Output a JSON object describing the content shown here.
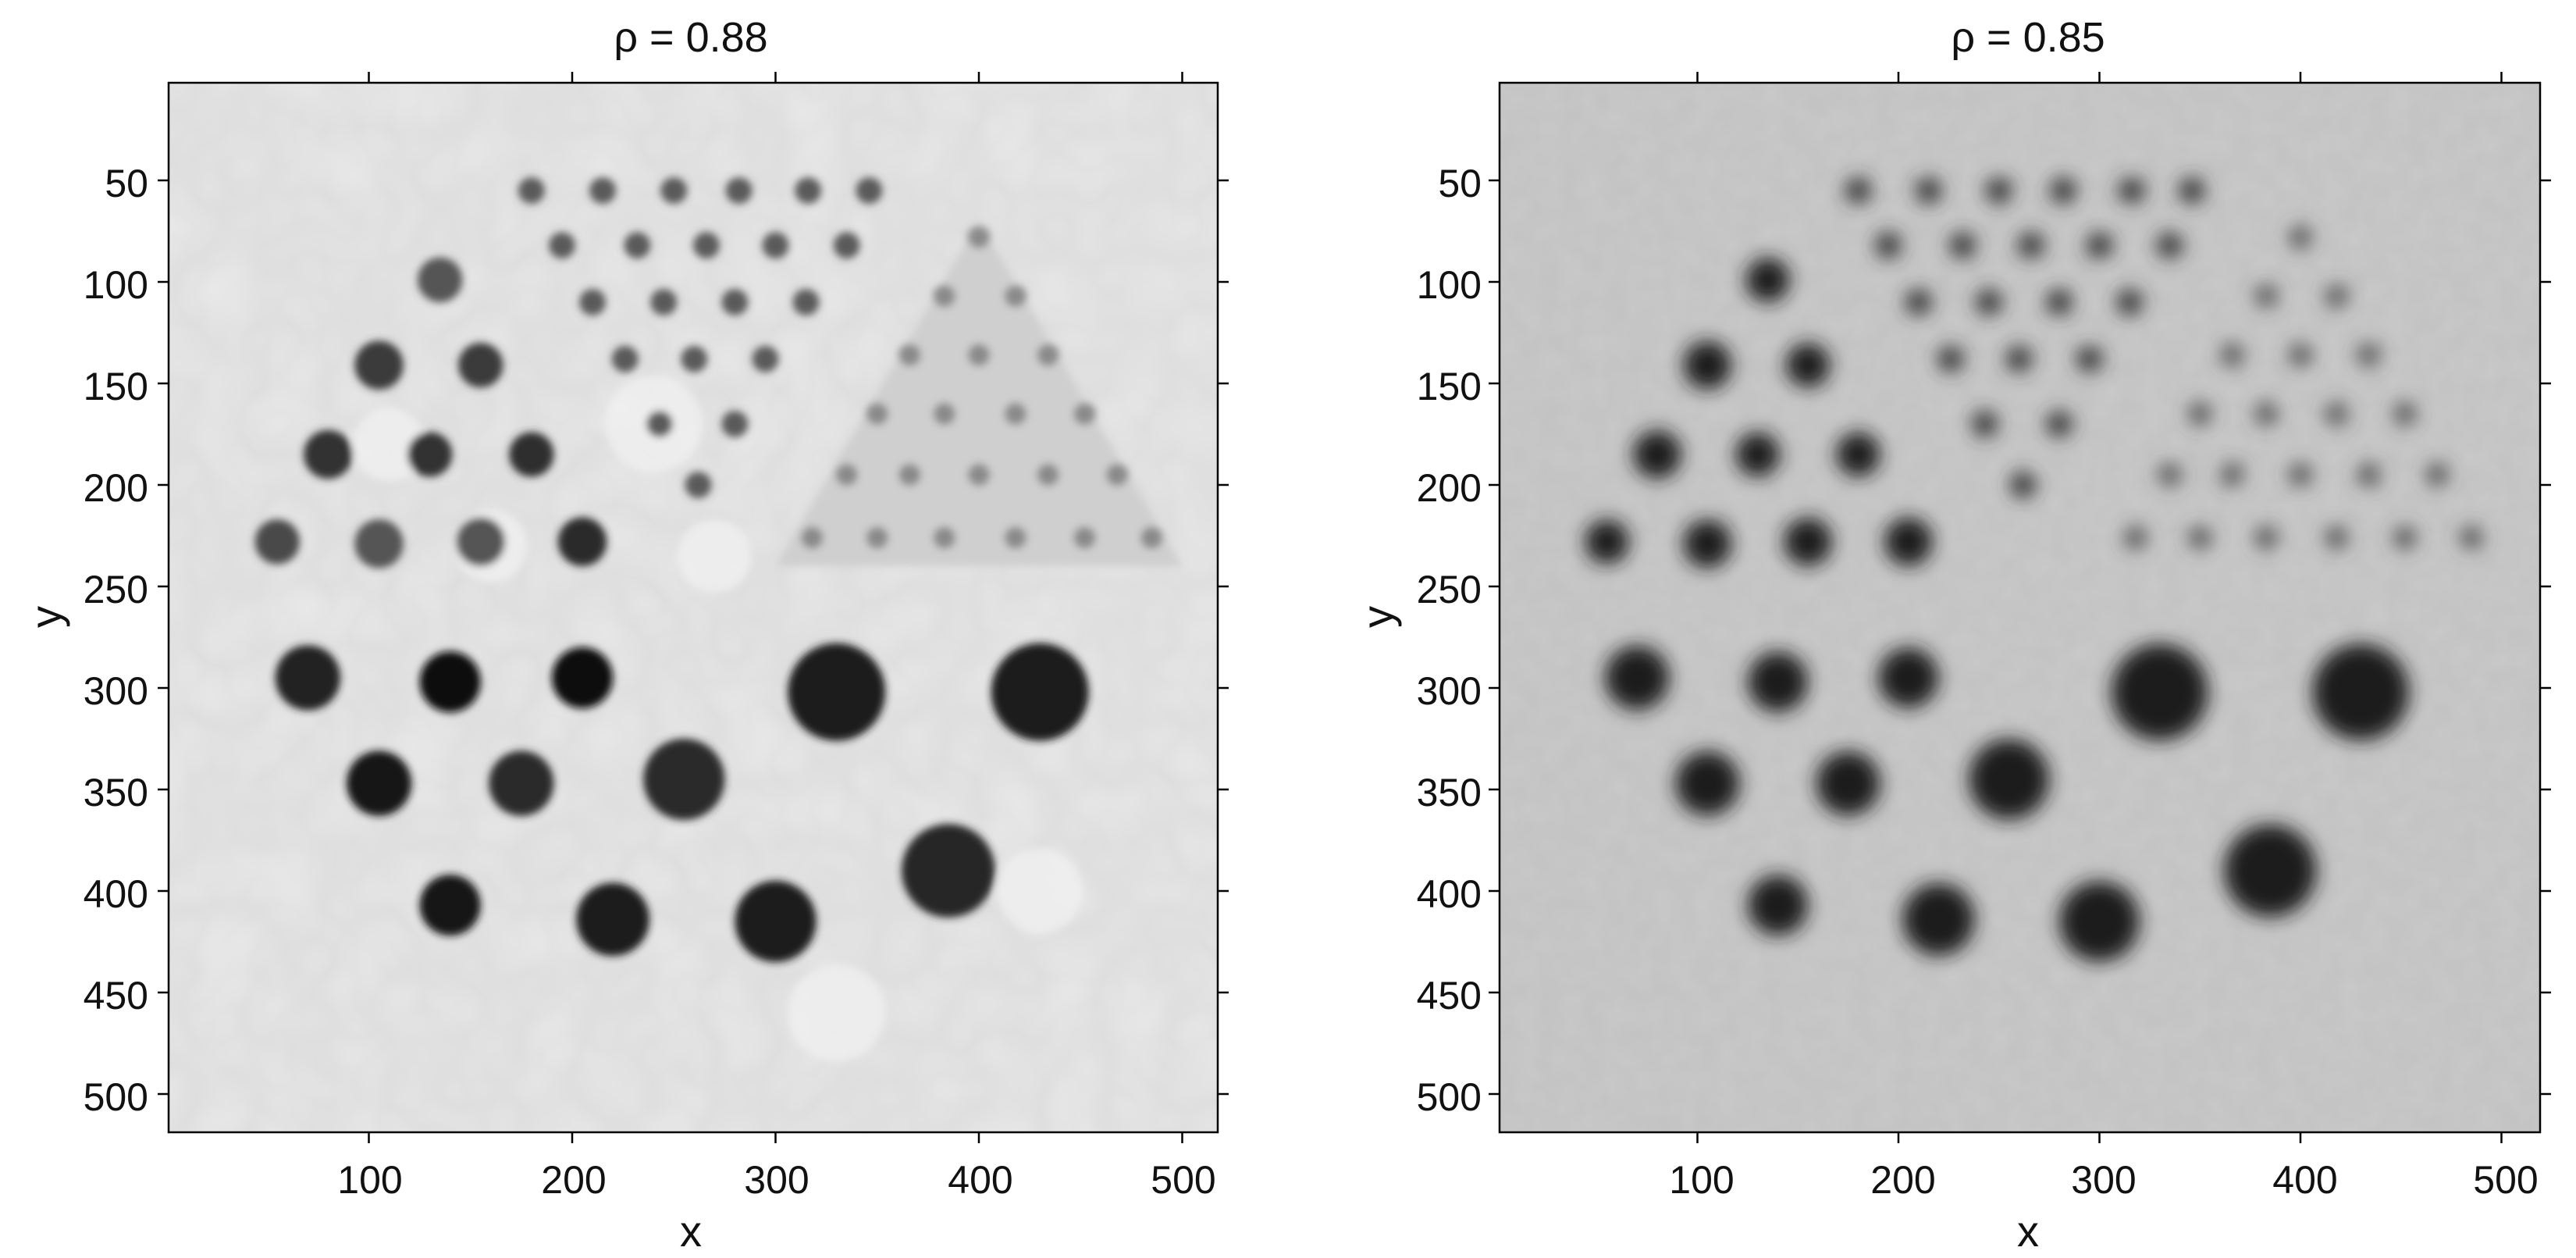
{
  "figure": {
    "panels": [
      {
        "id": "left",
        "title": "ρ = 0.88",
        "xlabel": "x",
        "ylabel": "y",
        "xticks": [
          "100",
          "200",
          "300",
          "400",
          "500"
        ],
        "yticks": [
          "50",
          "100",
          "150",
          "200",
          "250",
          "300",
          "350",
          "400",
          "450",
          "500"
        ],
        "background": "#dedede",
        "style": "piecewise-flat"
      },
      {
        "id": "right",
        "title": "ρ = 0.85",
        "xlabel": "x",
        "ylabel": "y",
        "xticks": [
          "100",
          "200",
          "300",
          "400",
          "500"
        ],
        "yticks": [
          "50",
          "100",
          "150",
          "200",
          "250",
          "300",
          "350",
          "400",
          "450",
          "500"
        ],
        "background": "#c9c9c9",
        "style": "blurred-ringing"
      }
    ],
    "colormap": "grayscale",
    "xlim": [
      1,
      520
    ],
    "ylim": [
      520,
      1
    ]
  }
}
